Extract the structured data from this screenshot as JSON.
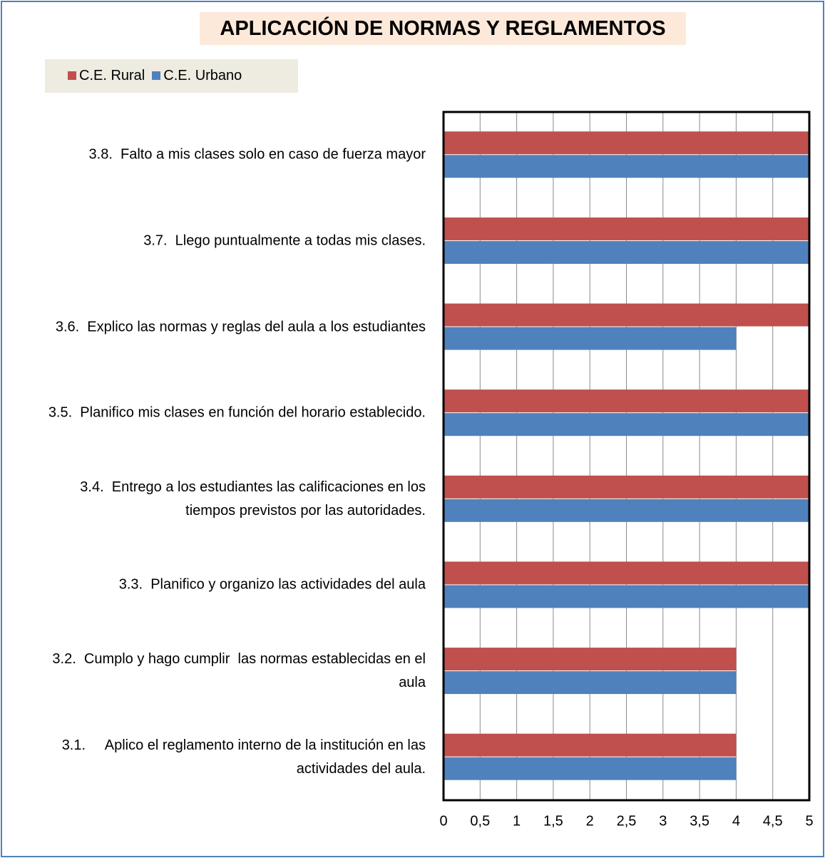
{
  "chart_data": {
    "type": "barh",
    "title": "APLICACIÓN DE NORMAS Y REGLAMENTOS",
    "categories": [
      "3.1.     Aplico el reglamento interno de la institución en las actividades del aula.",
      "3.2.  Cumplo y hago cumplir  las normas establecidas en el aula",
      "3.3.  Planifico y organizo las actividades del aula",
      "3.4.  Entrego a los estudiantes las calificaciones en los tiempos previstos por las autoridades.",
      "3.5.  Planifico mis clases en función del horario establecido.",
      "3.6.  Explico las normas y reglas del aula a los estudiantes",
      "3.7.  Llego puntualmente a todas mis clases.",
      "3.8.  Falto a mis clases solo en caso de fuerza mayor"
    ],
    "series": [
      {
        "name": "C.E. Rural",
        "color": "#c0504d",
        "values": [
          4,
          4,
          5,
          5,
          5,
          5,
          5,
          5
        ]
      },
      {
        "name": "C.E. Urbano",
        "color": "#4f81bd",
        "values": [
          4,
          4,
          5,
          5,
          5,
          4,
          5,
          5
        ]
      }
    ],
    "xlim": [
      0,
      5
    ],
    "xticks": [
      0,
      {
        "value": 0.5,
        "label": "0,5"
      },
      1,
      {
        "value": 1.5,
        "label": "1,5"
      },
      2,
      {
        "value": 2.5,
        "label": "2,5"
      },
      3,
      {
        "value": 3.5,
        "label": "3,5"
      },
      4,
      {
        "value": 4.5,
        "label": "4,5"
      },
      5
    ],
    "grid": true,
    "legend": "top-left"
  }
}
